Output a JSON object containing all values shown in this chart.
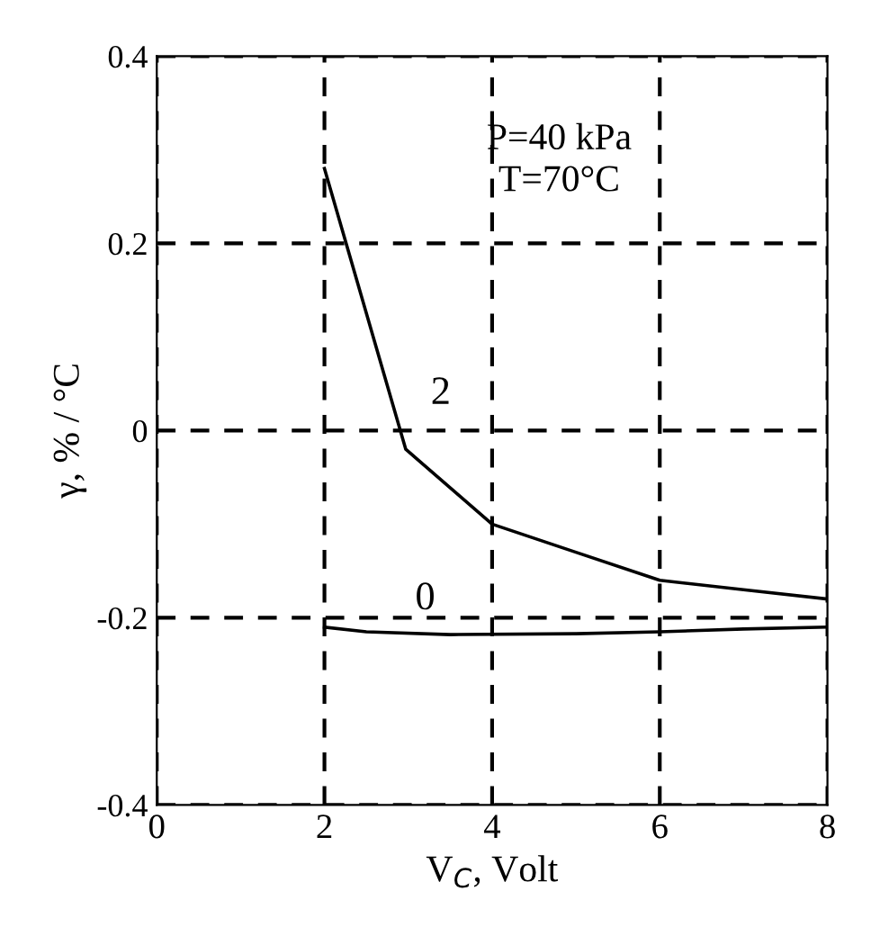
{
  "chart_data": {
    "type": "line",
    "xlabel": "V$_{C}$, Volt",
    "ylabel": "γ, % / °C",
    "xlim": [
      0,
      8
    ],
    "xticks": [
      0,
      2,
      4,
      6,
      8
    ],
    "ylim": [
      -0.4,
      0.4
    ],
    "yticks": [
      -0.4,
      -0.2,
      0,
      0.2,
      0.4
    ],
    "grid": true,
    "marker": "none",
    "line_style": "solid",
    "series": [
      {
        "name": "2",
        "color": "#000000",
        "x": [
          2,
          2.97,
          4,
          5,
          6,
          7,
          8
        ],
        "values": [
          0.28,
          -0.02,
          -0.1,
          -0.13,
          -0.16,
          -0.17,
          -0.18
        ]
      },
      {
        "name": "0",
        "color": "#000000",
        "x": [
          2,
          2.5,
          3.5,
          5,
          6,
          7,
          8
        ],
        "values": [
          -0.21,
          -0.215,
          -0.218,
          -0.217,
          -0.215,
          -0.212,
          -0.21
        ]
      }
    ],
    "annotations": [
      "P=40 kPa\nT=70°C"
    ]
  }
}
